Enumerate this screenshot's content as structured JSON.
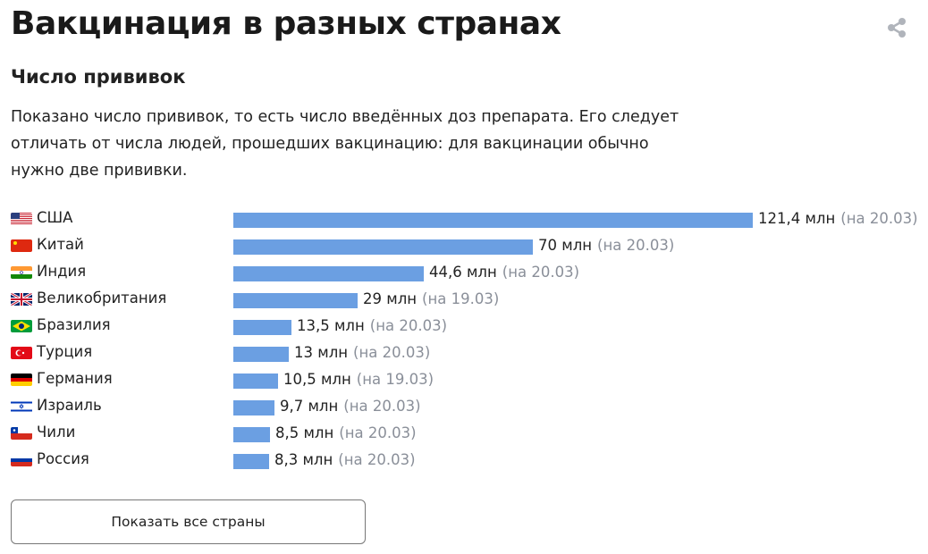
{
  "page": {
    "title": "Вакцинация в разных странах",
    "subtitle": "Число прививок",
    "description": "Показано число прививок, то есть число введённых доз препарата. Его следует отличать от числа людей, прошедших вакцинацию: для вакцинации обычно нужно две прививки.",
    "share_icon": "share-icon",
    "show_all_button": "Показать все страны"
  },
  "colors": {
    "bar": "#6b9fe2",
    "date_text": "#8a8f99"
  },
  "chart_data": {
    "type": "bar",
    "orientation": "horizontal",
    "unit": "млн",
    "categories": [
      "США",
      "Китай",
      "Индия",
      "Великобритания",
      "Бразилия",
      "Турция",
      "Германия",
      "Израиль",
      "Чили",
      "Россия"
    ],
    "values": [
      121.4,
      70,
      44.6,
      29,
      13.5,
      13,
      10.5,
      9.7,
      8.5,
      8.3
    ],
    "value_labels": [
      "121,4 млн",
      "70 млн",
      "44,6 млн",
      "29 млн",
      "13,5 млн",
      "13 млн",
      "10,5 млн",
      "9,7 млн",
      "8,5 млн",
      "8,3 млн"
    ],
    "date_labels": [
      "(на 20.03)",
      "(на 20.03)",
      "(на 20.03)",
      "(на 19.03)",
      "(на 20.03)",
      "(на 20.03)",
      "(на 19.03)",
      "(на 20.03)",
      "(на 20.03)",
      "(на 20.03)"
    ],
    "flags": [
      "us-flag-icon",
      "cn-flag-icon",
      "in-flag-icon",
      "gb-flag-icon",
      "br-flag-icon",
      "tr-flag-icon",
      "de-flag-icon",
      "il-flag-icon",
      "cl-flag-icon",
      "ru-flag-icon"
    ],
    "xlim": [
      0,
      121.4
    ]
  }
}
